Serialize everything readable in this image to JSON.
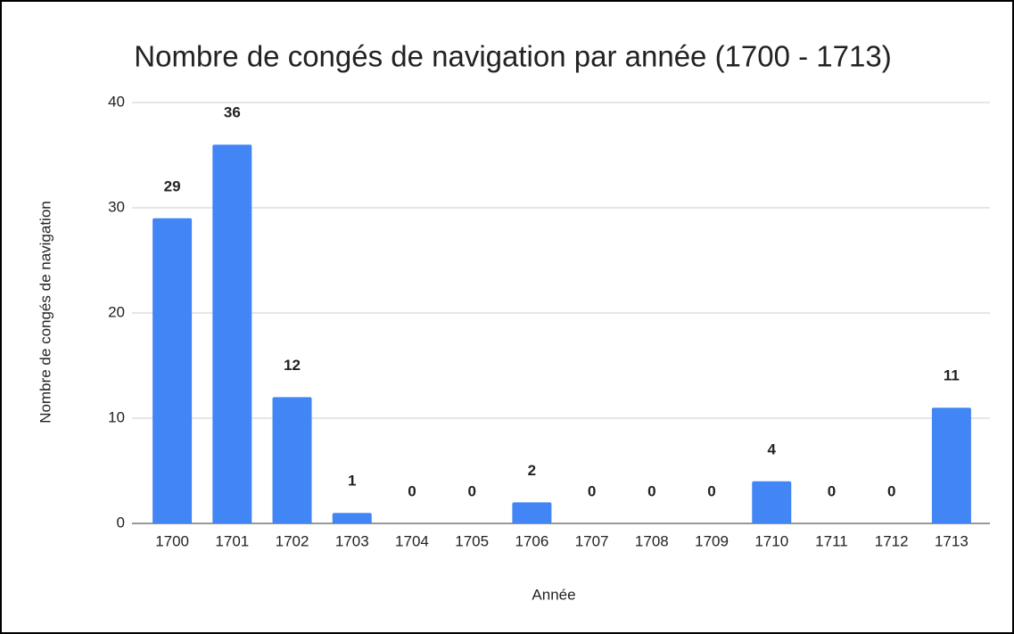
{
  "chart_data": {
    "type": "bar",
    "title": "Nombre de congés de navigation par année (1700 - 1713)",
    "x_label": "Année",
    "y_label": "Nombre de congés de navigation",
    "categories": [
      "1700",
      "1701",
      "1702",
      "1703",
      "1704",
      "1705",
      "1706",
      "1707",
      "1708",
      "1709",
      "1710",
      "1711",
      "1712",
      "1713"
    ],
    "values": [
      29,
      36,
      12,
      1,
      0,
      0,
      2,
      0,
      0,
      0,
      4,
      0,
      0,
      11
    ],
    "color": "#4285f4",
    "ylim": [
      0,
      40
    ],
    "yticks": [
      0,
      10,
      20,
      30,
      40
    ],
    "grid": true
  }
}
